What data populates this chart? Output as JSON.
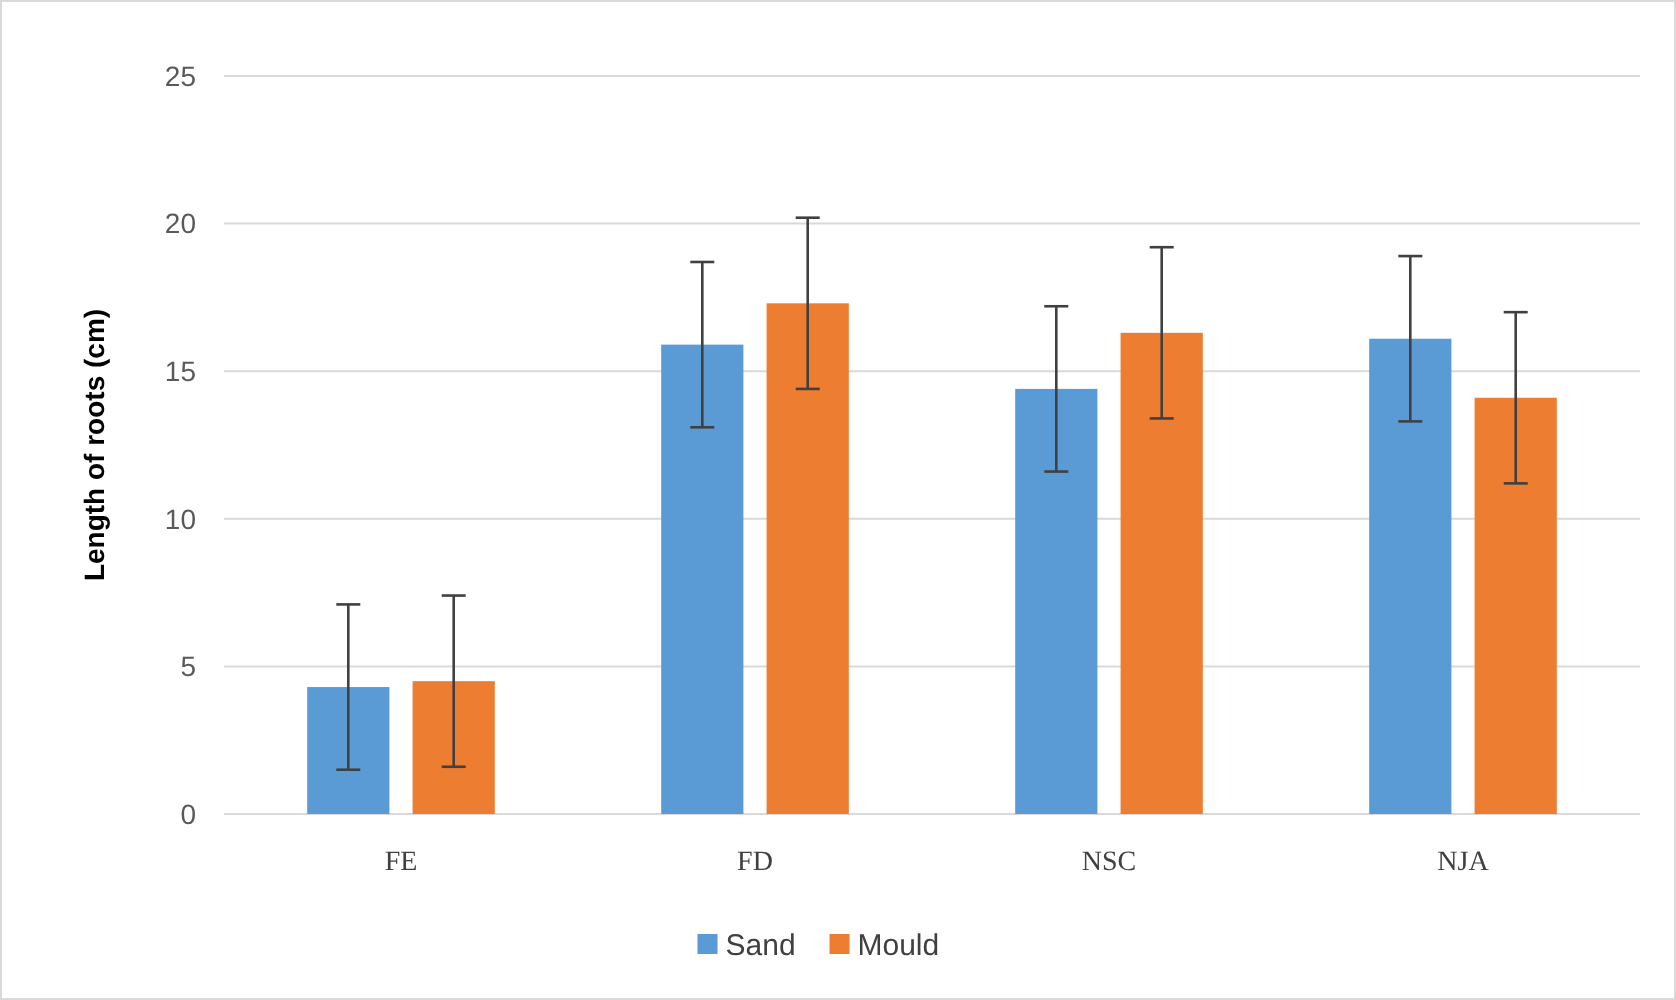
{
  "chart_data": {
    "type": "bar",
    "ylabel": "Length of roots (cm)",
    "categories": [
      "FE",
      "FD",
      "NSC",
      "NJA"
    ],
    "series": [
      {
        "name": "Sand",
        "color": "#5b9bd5",
        "values": [
          4.3,
          15.9,
          14.4,
          16.1
        ],
        "errors": [
          2.8,
          2.8,
          2.8,
          2.8
        ]
      },
      {
        "name": "Mould",
        "color": "#ed7d31",
        "values": [
          4.5,
          17.3,
          16.3,
          14.1
        ],
        "errors": [
          2.9,
          2.9,
          2.9,
          2.9
        ]
      }
    ],
    "ylim": [
      0,
      25
    ],
    "yticks": [
      0,
      5,
      10,
      15,
      20,
      25
    ],
    "grid": "y",
    "legend": "bottom"
  }
}
